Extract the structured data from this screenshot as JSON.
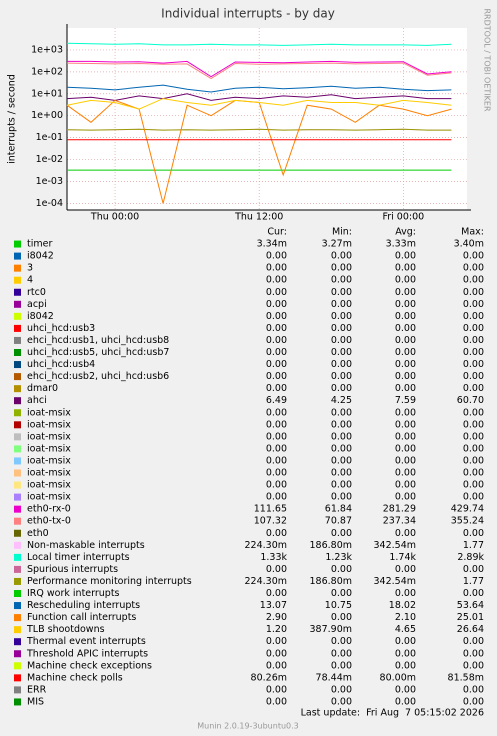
{
  "chart_data": {
    "type": "line",
    "title": "Individual interrupts - by day",
    "y_label": "interrupts / second",
    "side_label": "RRDTOOL / TOBI OETIKER",
    "log_scale": true,
    "grid": true,
    "xlim": [
      0,
      33.3
    ],
    "xticks": [
      {
        "value": 4,
        "label": "Thu 00:00"
      },
      {
        "value": 16,
        "label": "Thu 12:00"
      },
      {
        "value": 28,
        "label": "Fri 00:00"
      }
    ],
    "ylim": [
      5e-05,
      10000
    ],
    "yticks": [
      {
        "value": 1000,
        "label": "1e+03"
      },
      {
        "value": 100,
        "label": "1e+02"
      },
      {
        "value": 10,
        "label": "1e+01"
      },
      {
        "value": 1,
        "label": "1e+00"
      },
      {
        "value": 0.1,
        "label": "1e-01"
      },
      {
        "value": 0.01,
        "label": "1e-02"
      },
      {
        "value": 0.001,
        "label": "1e-03"
      },
      {
        "value": 0.0001,
        "label": "1e-04"
      }
    ],
    "x": [
      0,
      2,
      4,
      6,
      8,
      10,
      12,
      14,
      16,
      18,
      20,
      22,
      24,
      26,
      28,
      30,
      32
    ],
    "legend_columns": [
      "Cur:",
      "Min:",
      "Avg:",
      "Max:"
    ],
    "series": [
      {
        "name": "timer",
        "color": "#00cc00",
        "stats": [
          "3.34m",
          "3.27m",
          "3.33m",
          "3.40m"
        ],
        "values": [
          0.0033,
          0.0033,
          0.0033,
          0.0033,
          0.0033,
          0.0033,
          0.0033,
          0.0033,
          0.0033,
          0.0033,
          0.0033,
          0.0033,
          0.0033,
          0.0033,
          0.0033,
          0.0033,
          0.0033
        ]
      },
      {
        "name": "i8042",
        "color": "#0066b3",
        "stats": [
          "0.00",
          "0.00",
          "0.00",
          "0.00"
        ]
      },
      {
        "name": "3",
        "color": "#ff8000",
        "stats": [
          "0.00",
          "0.00",
          "0.00",
          "0.00"
        ]
      },
      {
        "name": "4",
        "color": "#ffcc00",
        "stats": [
          "0.00",
          "0.00",
          "0.00",
          "0.00"
        ]
      },
      {
        "name": "rtc0",
        "color": "#330099",
        "stats": [
          "0.00",
          "0.00",
          "0.00",
          "0.00"
        ]
      },
      {
        "name": "acpi",
        "color": "#990099",
        "stats": [
          "0.00",
          "0.00",
          "0.00",
          "0.00"
        ]
      },
      {
        "name": "i8042",
        "color": "#ccff00",
        "stats": [
          "0.00",
          "0.00",
          "0.00",
          "0.00"
        ]
      },
      {
        "name": "uhci_hcd:usb3",
        "color": "#ff0000",
        "stats": [
          "0.00",
          "0.00",
          "0.00",
          "0.00"
        ]
      },
      {
        "name": "ehci_hcd:usb1, uhci_hcd:usb8",
        "color": "#808080",
        "stats": [
          "0.00",
          "0.00",
          "0.00",
          "0.00"
        ]
      },
      {
        "name": "uhci_hcd:usb5, uhci_hcd:usb7",
        "color": "#008f00",
        "stats": [
          "0.00",
          "0.00",
          "0.00",
          "0.00"
        ]
      },
      {
        "name": "uhci_hcd:usb4",
        "color": "#00487d",
        "stats": [
          "0.00",
          "0.00",
          "0.00",
          "0.00"
        ]
      },
      {
        "name": "ehci_hcd:usb2, uhci_hcd:usb6",
        "color": "#b35a00",
        "stats": [
          "0.00",
          "0.00",
          "0.00",
          "0.00"
        ]
      },
      {
        "name": "dmar0",
        "color": "#b38f00",
        "stats": [
          "0.00",
          "0.00",
          "0.00",
          "0.00"
        ]
      },
      {
        "name": "ahci",
        "color": "#6b006b",
        "stats": [
          "6.49",
          "4.25",
          "7.59",
          "60.70"
        ],
        "values": [
          6,
          7,
          5,
          8,
          6,
          10,
          5,
          7,
          6,
          8,
          7,
          9,
          6,
          7,
          8,
          6,
          6
        ]
      },
      {
        "name": "ioat-msix",
        "color": "#8fb300",
        "stats": [
          "0.00",
          "0.00",
          "0.00",
          "0.00"
        ]
      },
      {
        "name": "ioat-msix",
        "color": "#b30000",
        "stats": [
          "0.00",
          "0.00",
          "0.00",
          "0.00"
        ]
      },
      {
        "name": "ioat-msix",
        "color": "#bebebe",
        "stats": [
          "0.00",
          "0.00",
          "0.00",
          "0.00"
        ]
      },
      {
        "name": "ioat-msix",
        "color": "#80ff80",
        "stats": [
          "0.00",
          "0.00",
          "0.00",
          "0.00"
        ]
      },
      {
        "name": "ioat-msix",
        "color": "#80c9ff",
        "stats": [
          "0.00",
          "0.00",
          "0.00",
          "0.00"
        ]
      },
      {
        "name": "ioat-msix",
        "color": "#ffc080",
        "stats": [
          "0.00",
          "0.00",
          "0.00",
          "0.00"
        ]
      },
      {
        "name": "ioat-msix",
        "color": "#ffe680",
        "stats": [
          "0.00",
          "0.00",
          "0.00",
          "0.00"
        ]
      },
      {
        "name": "ioat-msix",
        "color": "#aa80ff",
        "stats": [
          "0.00",
          "0.00",
          "0.00",
          "0.00"
        ]
      },
      {
        "name": "eth0-rx-0",
        "color": "#ee00cc",
        "stats": [
          "111.65",
          "61.84",
          "281.29",
          "429.74"
        ],
        "values": [
          300,
          300,
          280,
          290,
          250,
          300,
          60,
          280,
          270,
          260,
          280,
          300,
          270,
          280,
          290,
          80,
          100
        ]
      },
      {
        "name": "eth0-tx-0",
        "color": "#ff8080",
        "stats": [
          "107.32",
          "70.87",
          "237.34",
          "355.24"
        ],
        "values": [
          250,
          240,
          230,
          240,
          220,
          230,
          50,
          240,
          220,
          230,
          240,
          250,
          230,
          240,
          250,
          70,
          90
        ]
      },
      {
        "name": "eth0",
        "color": "#666600",
        "stats": [
          "0.00",
          "0.00",
          "0.00",
          "0.00"
        ]
      },
      {
        "name": "Non-maskable interrupts",
        "color": "#ffbfff",
        "stats": [
          "224.30m",
          "186.80m",
          "342.54m",
          "1.77"
        ],
        "values": [
          0.23,
          0.22,
          0.23,
          0.24,
          0.22,
          0.23,
          0.22,
          0.23,
          0.24,
          0.22,
          0.23,
          0.23,
          0.22,
          0.23,
          0.24,
          0.22,
          0.22
        ]
      },
      {
        "name": "Local timer interrupts",
        "color": "#00ffcc",
        "stats": [
          "1.33k",
          "1.23k",
          "1.74k",
          "2.89k"
        ],
        "values": [
          2000,
          1900,
          1800,
          1900,
          1700,
          1700,
          1800,
          1700,
          1700,
          1600,
          1700,
          1800,
          1700,
          1700,
          1700,
          1600,
          1800
        ]
      },
      {
        "name": "Spurious interrupts",
        "color": "#cc6699",
        "stats": [
          "0.00",
          "0.00",
          "0.00",
          "0.00"
        ]
      },
      {
        "name": "Performance monitoring interrupts",
        "color": "#999900",
        "stats": [
          "224.30m",
          "186.80m",
          "342.54m",
          "1.77"
        ],
        "values": [
          0.23,
          0.22,
          0.23,
          0.24,
          0.22,
          0.23,
          0.22,
          0.23,
          0.24,
          0.22,
          0.23,
          0.23,
          0.22,
          0.23,
          0.24,
          0.22,
          0.22
        ]
      },
      {
        "name": "IRQ work interrupts",
        "color": "#00cc00",
        "stats": [
          "0.00",
          "0.00",
          "0.00",
          "0.00"
        ]
      },
      {
        "name": "Rescheduling interrupts",
        "color": "#0066b3",
        "stats": [
          "13.07",
          "10.75",
          "18.02",
          "53.64"
        ],
        "values": [
          20,
          18,
          15,
          20,
          25,
          16,
          12,
          18,
          20,
          17,
          19,
          22,
          18,
          20,
          16,
          14,
          15
        ]
      },
      {
        "name": "Function call interrupts",
        "color": "#ff8000",
        "stats": [
          "2.90",
          "0.00",
          "2.10",
          "25.01"
        ],
        "values": [
          3,
          0.5,
          5,
          2,
          0.0001,
          3,
          1,
          5,
          4,
          0.002,
          3,
          2,
          0.5,
          3,
          2,
          1,
          2
        ]
      },
      {
        "name": "TLB shootdowns",
        "color": "#ffcc00",
        "stats": [
          "1.20",
          "387.90m",
          "4.65",
          "26.64"
        ],
        "values": [
          3,
          5,
          4,
          2,
          6,
          4,
          3,
          5,
          4,
          3,
          5,
          4,
          4,
          3,
          5,
          4,
          3
        ]
      },
      {
        "name": "Thermal event interrupts",
        "color": "#330099",
        "stats": [
          "0.00",
          "0.00",
          "0.00",
          "0.00"
        ]
      },
      {
        "name": "Threshold APIC interrupts",
        "color": "#990099",
        "stats": [
          "0.00",
          "0.00",
          "0.00",
          "0.00"
        ]
      },
      {
        "name": "Machine check exceptions",
        "color": "#ccff00",
        "stats": [
          "0.00",
          "0.00",
          "0.00",
          "0.00"
        ]
      },
      {
        "name": "Machine check polls",
        "color": "#ff0000",
        "stats": [
          "80.26m",
          "78.44m",
          "80.00m",
          "81.58m"
        ],
        "values": [
          0.08,
          0.08,
          0.08,
          0.08,
          0.08,
          0.08,
          0.08,
          0.08,
          0.08,
          0.08,
          0.08,
          0.08,
          0.08,
          0.08,
          0.08,
          0.08,
          0.08
        ]
      },
      {
        "name": "ERR",
        "color": "#808080",
        "stats": [
          "0.00",
          "0.00",
          "0.00",
          "0.00"
        ]
      },
      {
        "name": "MIS",
        "color": "#008f00",
        "stats": [
          "0.00",
          "0.00",
          "0.00",
          "0.00"
        ]
      }
    ],
    "last_update": "Last update:  Fri Aug  7 05:15:02 2026",
    "footer": "Munin 2.0.19-3ubuntu0.3"
  }
}
